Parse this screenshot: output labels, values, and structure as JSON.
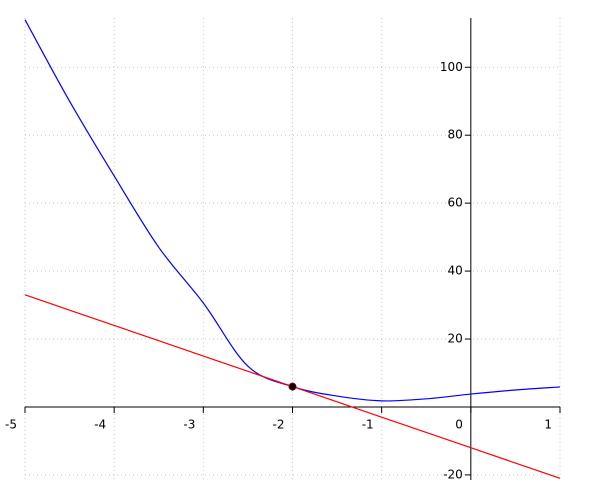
{
  "chart_data": {
    "type": "line",
    "x": [
      -5,
      -4.5,
      -4,
      -3.5,
      -3,
      -2.5,
      -2,
      -1.5,
      -1,
      -0.5,
      0,
      0.5,
      1
    ],
    "series": [
      {
        "color": "#0000ff",
        "values": [
          114,
          90,
          68,
          47,
          30.6,
          12,
          6,
          3.2,
          1.8,
          2.4,
          3.8,
          5,
          5.9
        ]
      },
      {
        "color": "#ff0000",
        "values": [
          33,
          28.5,
          24,
          19.5,
          15,
          10.5,
          6,
          1.5,
          -3,
          -7.5,
          -12,
          -16.5,
          -21
        ]
      }
    ],
    "points": [
      {
        "x": -2,
        "y": 6,
        "color": "#000000"
      }
    ],
    "xlim": [
      -5,
      1
    ],
    "ylim": [
      -21.5,
      114.5
    ],
    "xticks": [
      -5,
      -4,
      -3,
      -2,
      -1,
      0,
      1
    ],
    "yticks": [
      -20,
      20,
      40,
      60,
      80,
      100
    ],
    "grid": true
  }
}
